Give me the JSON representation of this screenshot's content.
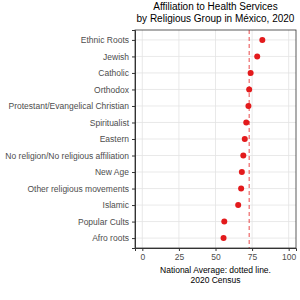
{
  "chart_data": {
    "type": "dot",
    "orientation": "horizontal",
    "title": [
      "Affiliation to Health Services",
      "by Religious Group in México, 2020"
    ],
    "x_label": [
      "National Average: dotted line.",
      "2020 Census"
    ],
    "categories": [
      "Ethnic Roots",
      "Jewish",
      "Catholic",
      "Orthodox",
      "Protestant/Evangelical Christian",
      "Spiritualist",
      "Eastern",
      "No religion/No religious affiliation",
      "New Age",
      "Other religious movements",
      "Islamic",
      "Popular Cults",
      "Afro roots"
    ],
    "values": [
      82,
      78.5,
      74,
      73,
      72.5,
      71,
      70,
      69,
      68,
      67.5,
      65.5,
      56,
      55.5
    ],
    "national_average": 73,
    "color": "#e31a1c",
    "marker": "circle",
    "line_style": "dashed",
    "xlim": [
      -5,
      105
    ],
    "xticks": [
      0,
      25,
      50,
      75,
      100
    ],
    "grid": true
  }
}
